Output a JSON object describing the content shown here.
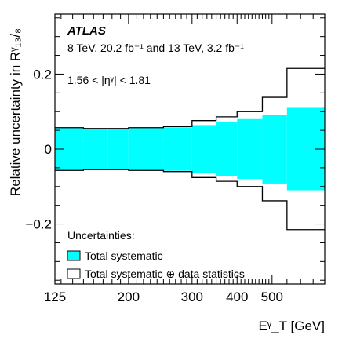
{
  "chart_data": {
    "type": "area",
    "experiment": "ATLAS",
    "energy_label": "8 TeV, 20.2 fb⁻¹ and 13 TeV, 3.2 fb⁻¹",
    "eta_label": "1.56 < |ηᵞ| < 1.81",
    "ylabel": "Relative uncertainty in Rᵞ₁₃/₈",
    "xlabel": "Eᵞ_T [GeV]",
    "xscale": "log",
    "xlim": [
      125,
      700
    ],
    "ylim": [
      -0.36,
      0.36
    ],
    "x_ticks": [
      125,
      200,
      300,
      400,
      500
    ],
    "x_tick_labels": [
      "125",
      "200",
      "300",
      "400",
      "500"
    ],
    "y_ticks": [
      -0.2,
      0,
      0.2
    ],
    "y_tick_labels": [
      "−0.2",
      "0",
      "0.2"
    ],
    "bin_edges": [
      125,
      150,
      175,
      200,
      250,
      300,
      350,
      400,
      470,
      550,
      700
    ],
    "series": [
      {
        "name": "Total systematic",
        "color": "#00ffff",
        "values": [
          0.056,
          0.055,
          0.055,
          0.056,
          0.058,
          0.064,
          0.073,
          0.08,
          0.092,
          0.11
        ]
      },
      {
        "name": "Total systematic ⊕ data statistics",
        "color": "#000000",
        "values": [
          0.057,
          0.055,
          0.055,
          0.057,
          0.06,
          0.076,
          0.086,
          0.1,
          0.138,
          0.215
        ]
      }
    ],
    "legend": {
      "title": "Uncertainties:",
      "entries": [
        "Total systematic",
        "Total systematic ⊕ data statistics"
      ]
    }
  }
}
